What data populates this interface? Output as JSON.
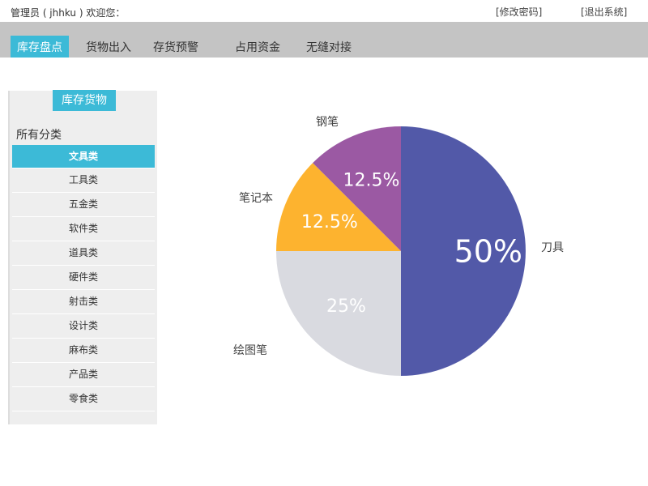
{
  "header": {
    "welcome": "管理员 ( jhhku ) 欢迎您：",
    "change_password": "[修改密码]",
    "logout": "[退出系统]"
  },
  "nav": {
    "tabs": [
      {
        "label": "库存盘点",
        "active": true
      },
      {
        "label": "货物出入"
      },
      {
        "label": "存货预警"
      },
      {
        "label": "占用资金"
      },
      {
        "label": "无缝对接"
      }
    ]
  },
  "sidebar": {
    "title": "库存货物",
    "all_label": "所有分类",
    "items": [
      "文具类",
      "工具类",
      "五金类",
      "软件类",
      "道具类",
      "硬件类",
      "射击类",
      "设计类",
      "麻布类",
      "产品类",
      "零食类"
    ],
    "active_index": 0
  },
  "colors": {
    "accent": "#3cbad7",
    "nav_bg": "#c4c4c4"
  },
  "chart_data": {
    "type": "pie",
    "slices": [
      {
        "label": "刀具",
        "value": 50,
        "display": "50%",
        "color": "#5259a8"
      },
      {
        "label": "绘图笔",
        "value": 25,
        "display": "25%",
        "color": "#d9dae0"
      },
      {
        "label": "笔记本",
        "value": 12.5,
        "display": "12.5%",
        "color": "#fdb32f"
      },
      {
        "label": "钢笔",
        "value": 12.5,
        "display": "12.5%",
        "color": "#9b59a3"
      }
    ]
  }
}
